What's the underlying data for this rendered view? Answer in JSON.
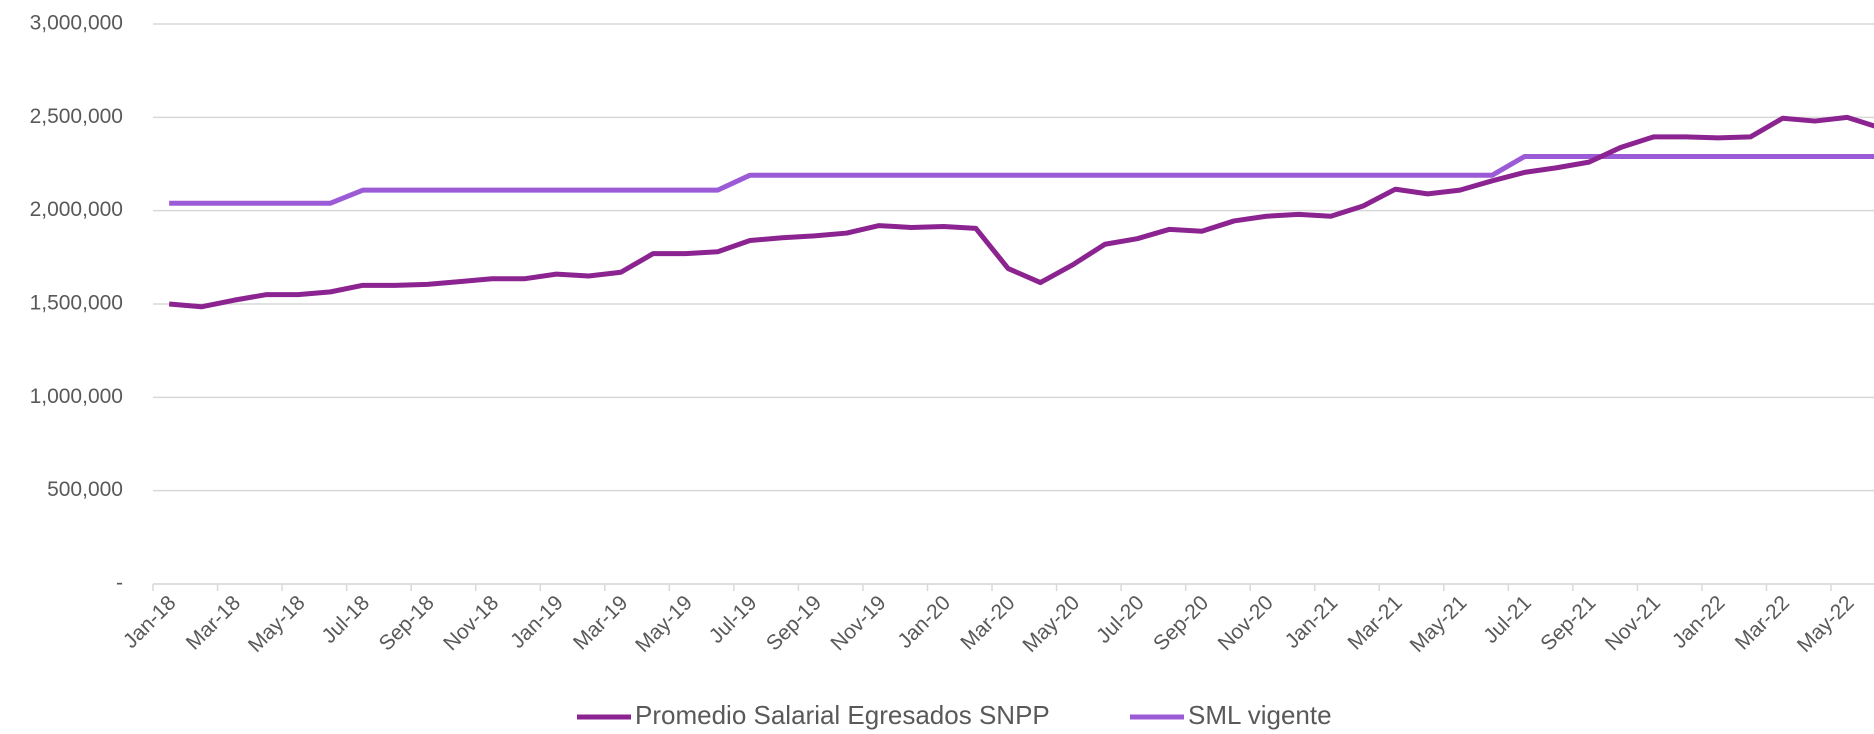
{
  "chart_data": {
    "type": "line",
    "categories": [
      "Jan-18",
      null,
      "Mar-18",
      null,
      "May-18",
      null,
      "Jul-18",
      null,
      "Sep-18",
      null,
      "Nov-18",
      null,
      "Jan-19",
      null,
      "Mar-19",
      null,
      "May-19",
      null,
      "Jul-19",
      null,
      "Sep-19",
      null,
      "Nov-19",
      null,
      "Jan-20",
      null,
      "Mar-20",
      null,
      "May-20",
      null,
      "Jul-20",
      null,
      "Sep-20",
      null,
      "Nov-20",
      null,
      "Jan-21",
      null,
      "Mar-21",
      null,
      "May-21",
      null,
      "Jul-21",
      null,
      "Sep-21",
      null,
      "Nov-21",
      null,
      "Jan-22",
      null,
      "Mar-22",
      null,
      "May-22",
      null
    ],
    "series": [
      {
        "name": "Promedio Salarial Egresados SNPP",
        "color": "#8b2390",
        "values": [
          1500000,
          1485000,
          1520000,
          1550000,
          1550000,
          1565000,
          1600000,
          1600000,
          1605000,
          1620000,
          1635000,
          1635000,
          1660000,
          1650000,
          1670000,
          1770000,
          1770000,
          1780000,
          1840000,
          1855000,
          1865000,
          1880000,
          1920000,
          1910000,
          1915000,
          1905000,
          1690000,
          1615000,
          1710000,
          1820000,
          1850000,
          1900000,
          1890000,
          1945000,
          1970000,
          1980000,
          1970000,
          2025000,
          2115000,
          2090000,
          2110000,
          2160000,
          2205000,
          2230000,
          2260000,
          2340000,
          2395000,
          2395000,
          2390000,
          2395000,
          2495000,
          2480000,
          2500000,
          2445000
        ]
      },
      {
        "name": "SML vigente",
        "color": "#9c5bd6",
        "values": [
          2040000,
          2040000,
          2040000,
          2040000,
          2040000,
          2040000,
          2110000,
          2110000,
          2110000,
          2110000,
          2110000,
          2110000,
          2110000,
          2110000,
          2110000,
          2110000,
          2110000,
          2110000,
          2190000,
          2190000,
          2190000,
          2190000,
          2190000,
          2190000,
          2190000,
          2190000,
          2190000,
          2190000,
          2190000,
          2190000,
          2190000,
          2190000,
          2190000,
          2190000,
          2190000,
          2190000,
          2190000,
          2190000,
          2190000,
          2190000,
          2190000,
          2190000,
          2290000,
          2290000,
          2290000,
          2290000,
          2290000,
          2290000,
          2290000,
          2290000,
          2290000,
          2290000,
          2290000,
          2290000
        ]
      }
    ],
    "ylim": [
      0,
      3000000
    ],
    "yticks": [
      {
        "value": 0,
        "label": "-"
      },
      {
        "value": 500000,
        "label": "500,000"
      },
      {
        "value": 1000000,
        "label": "1,000,000"
      },
      {
        "value": 1500000,
        "label": "1,500,000"
      },
      {
        "value": 2000000,
        "label": "2,000,000"
      },
      {
        "value": 2500000,
        "label": "2,500,000"
      },
      {
        "value": 3000000,
        "label": "3,000,000"
      }
    ],
    "grid": true,
    "legend": "bottom"
  }
}
